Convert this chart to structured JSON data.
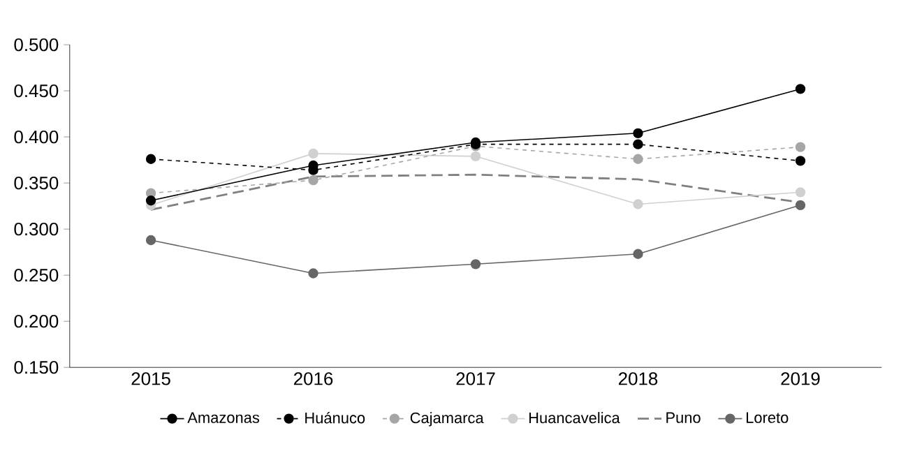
{
  "chart_data": {
    "type": "line",
    "categories": [
      "2015",
      "2016",
      "2017",
      "2018",
      "2019"
    ],
    "ylim": [
      0.15,
      0.5
    ],
    "yticks": [
      {
        "value": 0.15,
        "label": "0.150"
      },
      {
        "value": 0.2,
        "label": "0.200"
      },
      {
        "value": 0.25,
        "label": "0.250"
      },
      {
        "value": 0.3,
        "label": "0.300"
      },
      {
        "value": 0.35,
        "label": "0.350"
      },
      {
        "value": 0.4,
        "label": "0.400"
      },
      {
        "value": 0.45,
        "label": "0.450"
      },
      {
        "value": 0.5,
        "label": "0.500"
      }
    ],
    "grid": false,
    "legend": "bottom",
    "series": [
      {
        "name": "Amazonas",
        "color": "#000000",
        "marker": "circle",
        "line_style": "solid",
        "values": [
          0.331,
          0.369,
          0.394,
          0.404,
          0.452
        ]
      },
      {
        "name": "Huánuco",
        "color": "#000000",
        "marker": "circle",
        "line_style": "dashed",
        "values": [
          0.376,
          0.364,
          0.392,
          0.392,
          0.374
        ]
      },
      {
        "name": "Cajamarca",
        "color": "#a6a6a6",
        "marker": "circle",
        "line_style": "dashed",
        "values": [
          0.339,
          0.353,
          0.39,
          0.376,
          0.389
        ]
      },
      {
        "name": "Huancavelica",
        "color": "#d0d0d0",
        "marker": "circle",
        "line_style": "solid",
        "values": [
          0.326,
          0.382,
          0.379,
          0.327,
          0.34
        ]
      },
      {
        "name": "Puno",
        "color": "#808080",
        "marker": "none",
        "line_style": "dashed",
        "values": [
          0.321,
          0.357,
          0.359,
          0.354,
          0.329
        ]
      },
      {
        "name": "Loreto",
        "color": "#666666",
        "marker": "circle",
        "line_style": "solid",
        "values": [
          0.288,
          0.252,
          0.262,
          0.273,
          0.326
        ]
      }
    ]
  }
}
